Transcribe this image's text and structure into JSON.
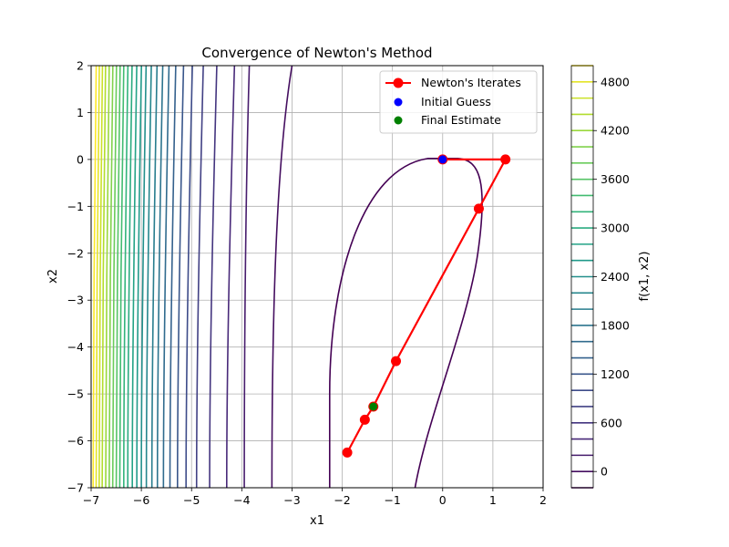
{
  "chart_data": {
    "type": "contour",
    "title": "Convergence of Newton's Method",
    "xlabel": "x1",
    "ylabel": "x2",
    "xlim": [
      -7,
      2
    ],
    "ylim": [
      -7,
      2
    ],
    "xticks": [
      -7,
      -6,
      -5,
      -4,
      -3,
      -2,
      -1,
      0,
      1,
      2
    ],
    "yticks": [
      2,
      1,
      0,
      -1,
      -2,
      -3,
      -4,
      -5,
      -6,
      -7
    ],
    "grid": true,
    "colorbar": {
      "label": "f(x1, x2)",
      "range": [
        -200,
        5000
      ],
      "level_step": 200,
      "ticks": [
        0,
        600,
        1200,
        1800,
        2400,
        3000,
        3600,
        4200,
        4800
      ],
      "colormap": "viridis"
    },
    "contour_curves_x_at_bottom": [
      -6.96,
      -6.9,
      -6.84,
      -6.78,
      -6.71,
      -6.64,
      -6.57,
      -6.5,
      -6.43,
      -6.35,
      -6.27,
      -6.18,
      -6.09,
      -6.0,
      -5.9,
      -5.79,
      -5.68,
      -5.56,
      -5.43,
      -5.28,
      -5.11,
      -4.9,
      -4.64,
      -4.3,
      -3.95,
      -3.4,
      -2.25
    ],
    "series": [
      {
        "name": "Newton's Iterates",
        "type": "line",
        "color": "#ff0000",
        "points": [
          [
            0,
            0
          ],
          [
            1.25,
            0
          ],
          [
            0.72,
            -1.05
          ],
          [
            -0.93,
            -4.3
          ],
          [
            -1.38,
            -5.27
          ],
          [
            -1.55,
            -5.55
          ],
          [
            -1.9,
            -6.25
          ]
        ]
      },
      {
        "name": "Initial Guess",
        "type": "scatter",
        "color": "#0000ff",
        "points": [
          [
            0,
            0
          ]
        ]
      },
      {
        "name": "Final Estimate",
        "type": "scatter",
        "color": "#008000",
        "points": [
          [
            -1.38,
            -5.27
          ]
        ]
      }
    ],
    "legend": {
      "placement": "top-right",
      "entries": [
        "Newton's Iterates",
        "Initial Guess",
        "Final Estimate"
      ]
    }
  }
}
